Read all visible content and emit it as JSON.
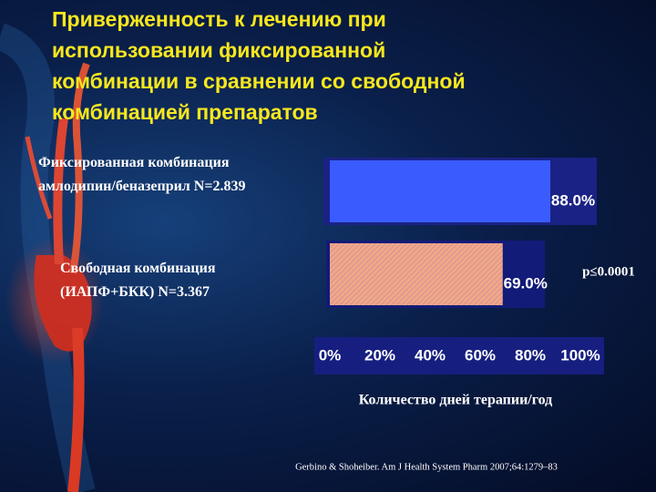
{
  "chart_data": {
    "type": "bar",
    "title": "Приверженность к лечению при\nиспользовании фиксированной\nкомбинации в сравнении со свободной\nкомбинацией препаратов",
    "categories": [
      "Фиксированная комбинация\nамлодипин/беназеприл N=2.839",
      "Свободная комбинация\n(ИАПФ+БКК) N=3.367"
    ],
    "values": [
      88.0,
      69.0
    ],
    "value_labels": [
      "88.0%",
      "69.0%"
    ],
    "colors": [
      "#3a5cff",
      "#f2a886"
    ],
    "xlim": [
      0,
      100
    ],
    "xticks": [
      {
        "value": 0,
        "label": "0%"
      },
      {
        "value": 20,
        "label": "20%"
      },
      {
        "value": 40,
        "label": "40%"
      },
      {
        "value": 60,
        "label": "60%"
      },
      {
        "value": 80,
        "label": "80%"
      },
      {
        "value": 100,
        "label": "100%"
      }
    ],
    "x_label": "Количество дней терапии/год",
    "annotation": "p≤0.0001",
    "source": "Gerbino & Shoheiber. Am J Health System Pharm 2007;64:1279–83"
  }
}
